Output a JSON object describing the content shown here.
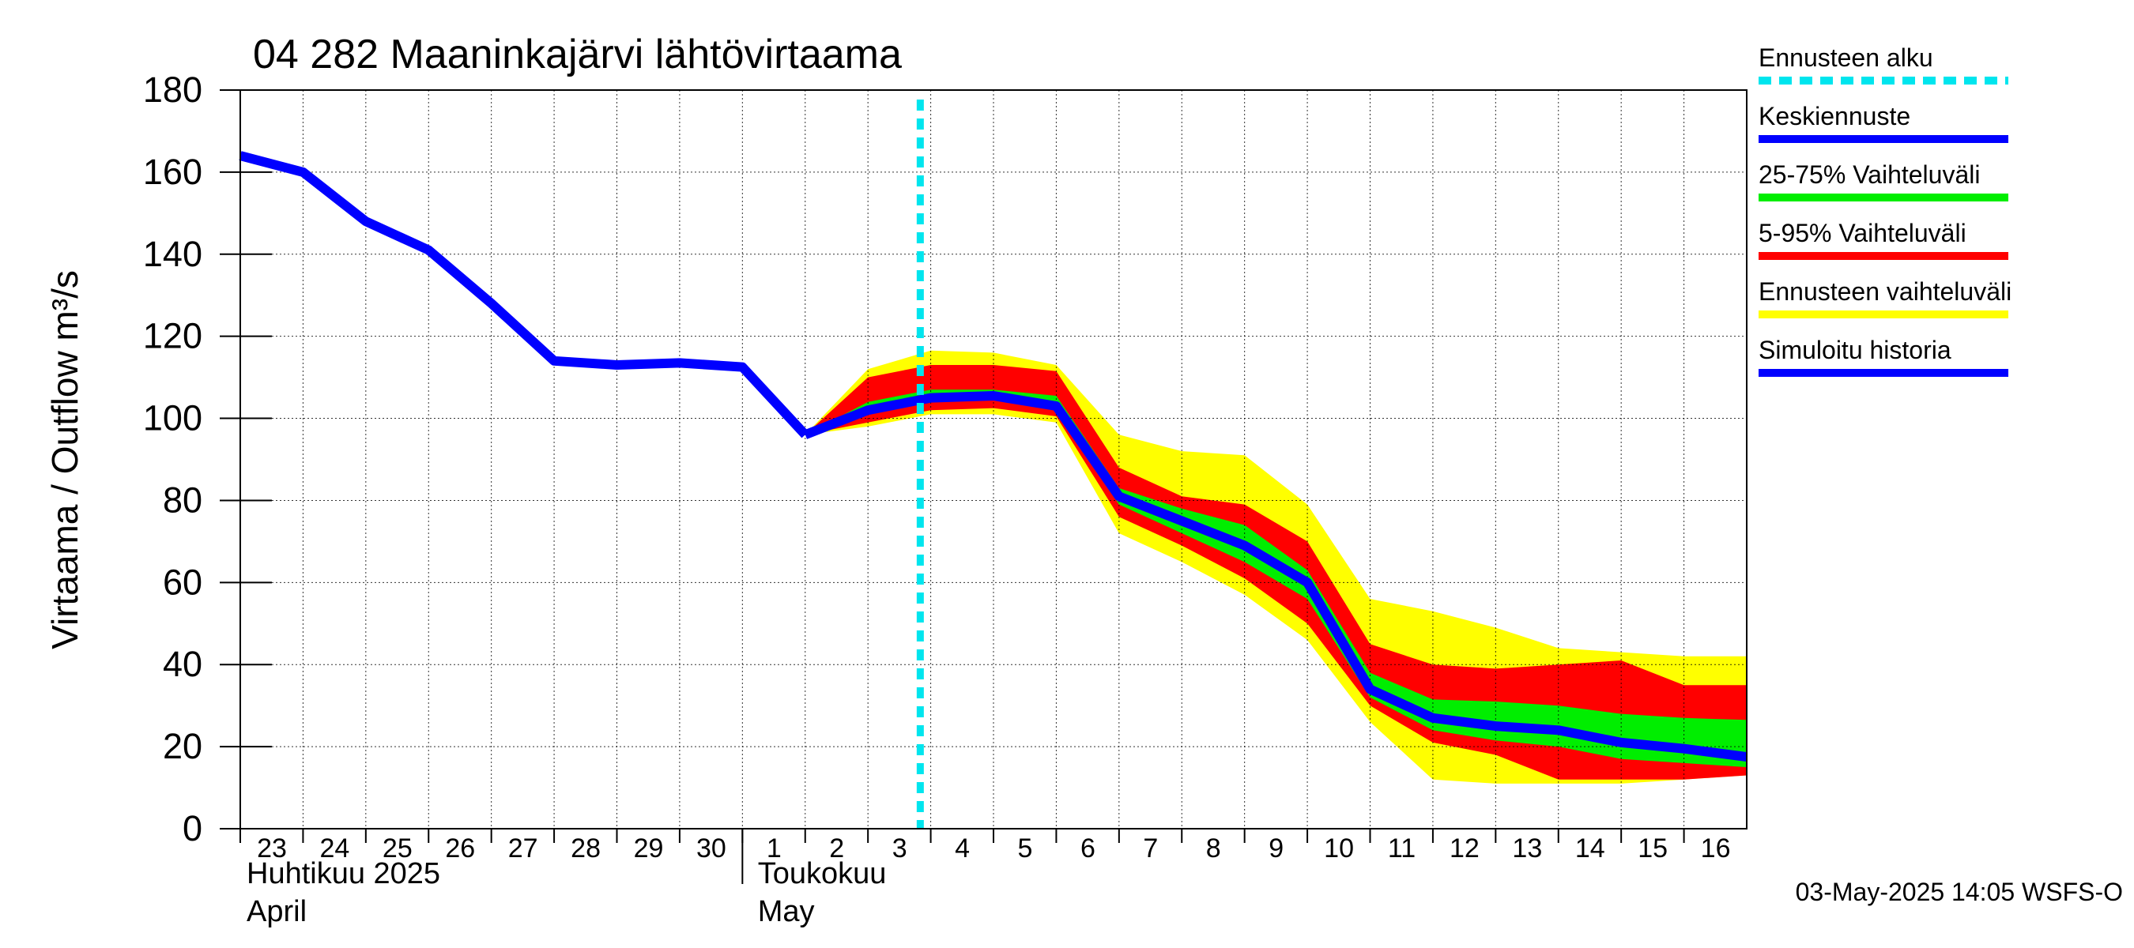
{
  "chart_data": {
    "type": "area",
    "title": "04 282 Maaninkajärvi lähtövirtaama",
    "ylabel": "Virtaama / Outflow    m³/s",
    "ylim": [
      0,
      180
    ],
    "yticks": [
      0,
      20,
      40,
      60,
      80,
      100,
      120,
      140,
      160,
      180
    ],
    "xlim": [
      "2025-04-23",
      "2025-05-17"
    ],
    "xtick_labels": [
      "23",
      "24",
      "25",
      "26",
      "27",
      "28",
      "29",
      "30",
      "1",
      "2",
      "3",
      "4",
      "5",
      "6",
      "7",
      "8",
      "9",
      "10",
      "11",
      "12",
      "13",
      "14",
      "15",
      "16"
    ],
    "month_labels": [
      {
        "fi": "Huhtikuu  2025",
        "en": "April"
      },
      {
        "fi": "Toukokuu",
        "en": "May"
      }
    ],
    "grid": true,
    "legend_position": "right",
    "forecast_start": "2025-05-03 20:00",
    "legend": [
      {
        "key": "forecast_start",
        "label": "Ennusteen alku",
        "color": "#00e5ee",
        "style": "dashed"
      },
      {
        "key": "median",
        "label": "Keskiennuste",
        "color": "#0000ff"
      },
      {
        "key": "p25_75",
        "label": "25-75% Vaihteluväli",
        "color": "#00ee00"
      },
      {
        "key": "p5_95",
        "label": "5-95% Vaihteluväli",
        "color": "#ff0000"
      },
      {
        "key": "range",
        "label": "Ennusteen vaihteluväli",
        "color": "#ffff00"
      },
      {
        "key": "history",
        "label": "Simuloitu historia",
        "color": "#0000ff"
      }
    ],
    "history": {
      "x": [
        "2025-04-23",
        "2025-04-24",
        "2025-04-25",
        "2025-04-26",
        "2025-04-27",
        "2025-04-28",
        "2025-04-29",
        "2025-04-30",
        "2025-05-01",
        "2025-05-02"
      ],
      "values": [
        164,
        160,
        148,
        141,
        128,
        114,
        113,
        113.5,
        112.5,
        96
      ]
    },
    "forecast": {
      "x": [
        "2025-05-02",
        "2025-05-03",
        "2025-05-04",
        "2025-05-05",
        "2025-05-06",
        "2025-05-07",
        "2025-05-08",
        "2025-05-09",
        "2025-05-10",
        "2025-05-11",
        "2025-05-12",
        "2025-05-13",
        "2025-05-14",
        "2025-05-15",
        "2025-05-16",
        "2025-05-17"
      ],
      "median": [
        96,
        102,
        105,
        105.5,
        103,
        81,
        75,
        69,
        60,
        34,
        27,
        25,
        24,
        21,
        19.5,
        17.5
      ],
      "p25": [
        96,
        101,
        104,
        104.5,
        102,
        79,
        72,
        65,
        56,
        32,
        24,
        21.5,
        20,
        17,
        16,
        15
      ],
      "p75": [
        96,
        104,
        107,
        107,
        105.5,
        83,
        78,
        74,
        63,
        38,
        31.5,
        31,
        30,
        28,
        27,
        26.5
      ],
      "p5": [
        96,
        99,
        102,
        102.5,
        100.5,
        76,
        69,
        61,
        50,
        30,
        21,
        18,
        12,
        12,
        12,
        13
      ],
      "p95": [
        96,
        110,
        113,
        113,
        111.5,
        88,
        81,
        79,
        70,
        45,
        40,
        39,
        40,
        41,
        35,
        35
      ],
      "min": [
        96,
        98,
        101,
        101,
        99,
        72,
        65,
        57,
        46,
        26,
        12,
        11,
        11,
        11,
        12,
        13
      ],
      "max": [
        96,
        112,
        116.5,
        116,
        113,
        96,
        92,
        91,
        79,
        56,
        53,
        49,
        44,
        43,
        42,
        42
      ]
    }
  },
  "footer": {
    "timestamp": "03-May-2025 14:05 WSFS-O"
  }
}
